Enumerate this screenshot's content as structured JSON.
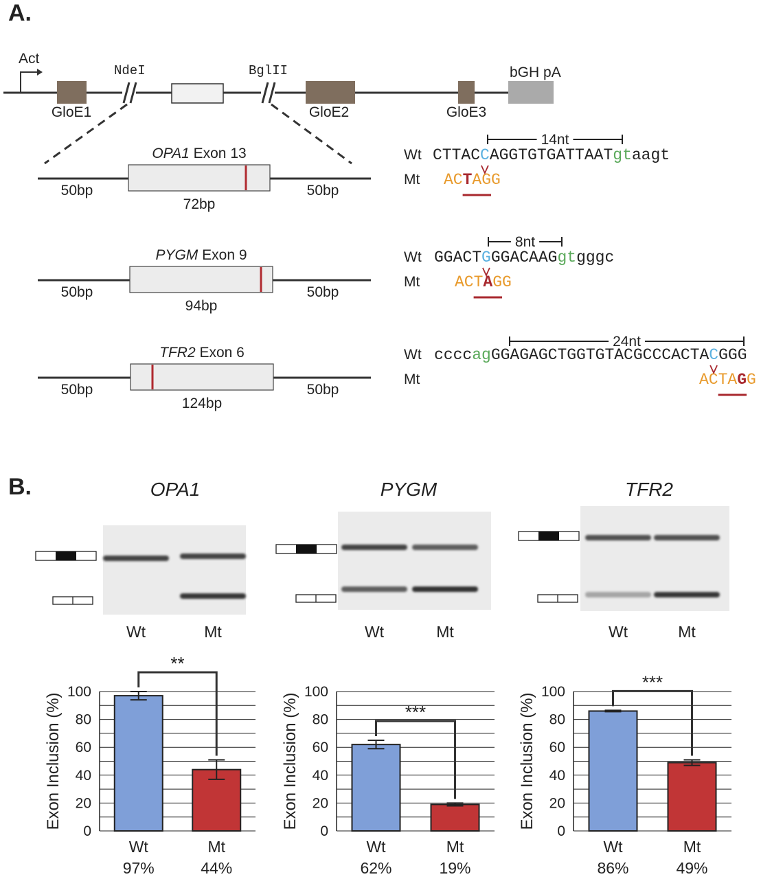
{
  "panel_a": {
    "label": "A.",
    "vector": {
      "promoter": "Act",
      "sites": [
        "NdeI",
        "BglII"
      ],
      "exons": [
        "GloE1",
        "GloE2",
        "GloE3"
      ],
      "polya": "bGH pA"
    },
    "constructs": [
      {
        "gene": "OPA1",
        "exon": "Exon 13",
        "left": "50bp",
        "length": "72bp",
        "right": "50bp",
        "distance": "14nt",
        "wt_label": "Wt",
        "mt_label": "Mt",
        "wt_seq": [
          {
            "text": "CTTAC"
          },
          {
            "text": "C",
            "color": "#5ab0e0"
          },
          {
            "text": "AGGTGTGATTAAT"
          },
          {
            "text": "gt",
            "color": "#5aa95a"
          },
          {
            "text": "aagt"
          }
        ],
        "mt_seq": [
          {
            "text": "AC",
            "color": "#e89a2c"
          },
          {
            "text": "T",
            "color": "#a8282e",
            "bold": true
          },
          {
            "text": "AGG",
            "color": "#e89a2c"
          }
        ]
      },
      {
        "gene": "PYGM",
        "exon": "Exon 9",
        "left": "50bp",
        "length": "94bp",
        "right": "50bp",
        "distance": "8nt",
        "wt_label": "Wt",
        "mt_label": "Mt",
        "wt_seq": [
          {
            "text": "GGACT"
          },
          {
            "text": "G",
            "color": "#5ab0e0"
          },
          {
            "text": "GGACAAG"
          },
          {
            "text": "gt",
            "color": "#5aa95a"
          },
          {
            "text": "gggc"
          }
        ],
        "mt_seq": [
          {
            "text": "ACT",
            "color": "#e89a2c"
          },
          {
            "text": "A",
            "color": "#a8282e",
            "bold": true
          },
          {
            "text": "GG",
            "color": "#e89a2c"
          }
        ]
      },
      {
        "gene": "TFR2",
        "exon": "Exon 6",
        "left": "50bp",
        "length": "124bp",
        "right": "50bp",
        "distance": "24nt",
        "wt_label": "Wt",
        "mt_label": "Mt",
        "wt_seq": [
          {
            "text": "cccc"
          },
          {
            "text": "ag",
            "color": "#5aa95a"
          },
          {
            "text": "GGAGAGCTGGTGTACGCCCACTA"
          },
          {
            "text": "C",
            "color": "#5ab0e0"
          },
          {
            "text": "GGG"
          }
        ],
        "mt_seq": [
          {
            "text": "ACTA",
            "color": "#e89a2c"
          },
          {
            "text": "G",
            "color": "#a8282e",
            "bold": true
          },
          {
            "text": "G",
            "color": "#e89a2c"
          }
        ]
      }
    ]
  },
  "panel_b": {
    "label": "B."
  },
  "chart_data": [
    {
      "type": "bar",
      "title": "OPA1",
      "gel_lanes": [
        "Wt",
        "Mt"
      ],
      "ylabel": "Exon Inclusion (%)",
      "categories": [
        "Wt",
        "Mt"
      ],
      "values": [
        97,
        44
      ],
      "errors": [
        3,
        7
      ],
      "value_labels": [
        "97%",
        "44%"
      ],
      "colors": [
        "#7f9fd8",
        "#c13536"
      ],
      "ylim": [
        0,
        100
      ],
      "yticks": [
        0,
        20,
        40,
        60,
        80,
        100
      ],
      "minor_yticks": [
        10,
        30,
        50,
        70,
        90
      ],
      "grid": true,
      "significance": "**"
    },
    {
      "type": "bar",
      "title": "PYGM",
      "gel_lanes": [
        "Wt",
        "Mt"
      ],
      "ylabel": "Exon Inclusion (%)",
      "categories": [
        "Wt",
        "Mt"
      ],
      "values": [
        62,
        19
      ],
      "errors": [
        3,
        1
      ],
      "value_labels": [
        "62%",
        "19%"
      ],
      "colors": [
        "#7f9fd8",
        "#c13536"
      ],
      "ylim": [
        0,
        100
      ],
      "yticks": [
        0,
        20,
        40,
        60,
        80,
        100
      ],
      "minor_yticks": [
        10,
        30,
        50,
        70,
        90
      ],
      "grid": true,
      "significance": "***"
    },
    {
      "type": "bar",
      "title": "TFR2",
      "gel_lanes": [
        "Wt",
        "Mt"
      ],
      "ylabel": "Exon Inclusion (%)",
      "categories": [
        "Wt",
        "Mt"
      ],
      "values": [
        86,
        49
      ],
      "errors": [
        0.5,
        2
      ],
      "value_labels": [
        "86%",
        "49%"
      ],
      "colors": [
        "#7f9fd8",
        "#c13536"
      ],
      "ylim": [
        0,
        100
      ],
      "yticks": [
        0,
        20,
        40,
        60,
        80,
        100
      ],
      "minor_yticks": [
        10,
        30,
        50,
        70,
        90
      ],
      "grid": true,
      "significance": "***"
    }
  ]
}
